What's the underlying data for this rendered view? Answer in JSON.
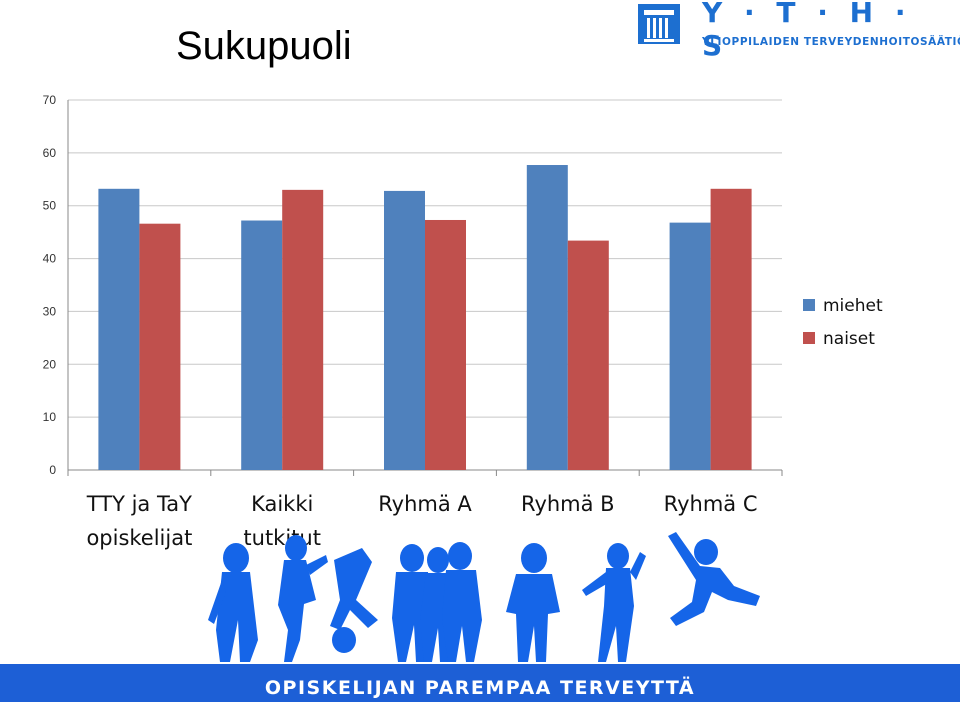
{
  "slide": {
    "title": "Sukupuoli",
    "footer": "OPISKELIJAN PAREMPAA TERVEYTTÄ"
  },
  "logo": {
    "letters": "Y · T · H · S",
    "tagline": "YLIOPPILAIDEN TERVEYDENHOITOSÄÄTIÖ"
  },
  "chart_data": {
    "type": "bar",
    "title": "",
    "xlabel": "",
    "ylabel": "",
    "ylim": [
      0,
      70
    ],
    "yticks": [
      0,
      10,
      20,
      30,
      40,
      50,
      60,
      70
    ],
    "grid": true,
    "legend_position": "right",
    "categories": [
      [
        "TTY ja TaY",
        "opiskelijat"
      ],
      [
        "Kaikki",
        "tutkitut"
      ],
      [
        "Ryhmä A"
      ],
      [
        "Ryhmä B"
      ],
      [
        "Ryhmä C"
      ]
    ],
    "series": [
      {
        "name": "miehet",
        "color": "#4f81bd",
        "values": [
          53.2,
          47.2,
          52.8,
          57.7,
          46.8
        ]
      },
      {
        "name": "naiset",
        "color": "#c0504d",
        "values": [
          46.6,
          53.0,
          47.3,
          43.4,
          53.2
        ]
      }
    ]
  }
}
